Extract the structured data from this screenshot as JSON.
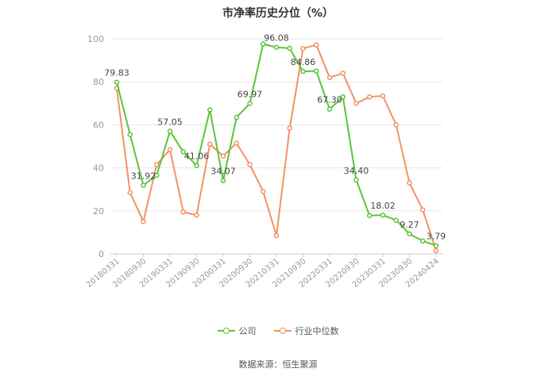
{
  "chart_data": {
    "type": "line",
    "title": "市净率历史分位（%）",
    "ylim": [
      0,
      100
    ],
    "yticks": [
      0,
      20,
      40,
      60,
      80,
      100
    ],
    "x": [
      "20180331",
      "20180630",
      "20180930",
      "20181231",
      "20190331",
      "20190630",
      "20190930",
      "20191231",
      "20200331",
      "20200630",
      "20200930",
      "20201231",
      "20210331",
      "20210630",
      "20210930",
      "20211231",
      "20220331",
      "20220630",
      "20220930",
      "20221231",
      "20230331",
      "20230630",
      "20230930",
      "20231231",
      "20240424"
    ],
    "xtick_labels": [
      "20180331",
      "20180930",
      "20190331",
      "20190930",
      "20200331",
      "20200930",
      "20210331",
      "20210930",
      "20220331",
      "20220930",
      "20230331",
      "20230930",
      "20240424"
    ],
    "series": [
      {
        "name": "公司",
        "color": "#5ac53a",
        "values": [
          79.83,
          55.5,
          31.92,
          36.5,
          57.05,
          47.5,
          41.06,
          67.0,
          34.07,
          63.5,
          69.97,
          97.6,
          96.08,
          95.6,
          84.86,
          85.0,
          67.3,
          73.0,
          34.4,
          17.8,
          18.02,
          15.6,
          9.27,
          6.0,
          3.79
        ]
      },
      {
        "name": "行业中位数",
        "color": "#f39164",
        "values": [
          77.0,
          28.5,
          15.0,
          41.5,
          48.5,
          19.5,
          18.0,
          51.0,
          45.5,
          51.5,
          41.5,
          29.0,
          8.5,
          58.5,
          95.5,
          97.2,
          82.0,
          84.0,
          70.0,
          73.0,
          73.5,
          60.0,
          33.0,
          20.5,
          1.5
        ]
      }
    ],
    "data_labels": [
      {
        "series": 0,
        "index": 0,
        "text": "79.83"
      },
      {
        "series": 0,
        "index": 2,
        "text": "31.92"
      },
      {
        "series": 0,
        "index": 4,
        "text": "57.05"
      },
      {
        "series": 0,
        "index": 6,
        "text": "41.06"
      },
      {
        "series": 0,
        "index": 8,
        "text": "34.07"
      },
      {
        "series": 0,
        "index": 10,
        "text": "69.97"
      },
      {
        "series": 0,
        "index": 12,
        "text": "96.08"
      },
      {
        "series": 0,
        "index": 14,
        "text": "84.86"
      },
      {
        "series": 0,
        "index": 16,
        "text": "67.30"
      },
      {
        "series": 0,
        "index": 18,
        "text": "34.40"
      },
      {
        "series": 0,
        "index": 20,
        "text": "18.02"
      },
      {
        "series": 0,
        "index": 22,
        "text": "9.27"
      },
      {
        "series": 0,
        "index": 24,
        "text": "3.79"
      }
    ],
    "grid": true,
    "legend_position": "bottom"
  },
  "legend": {
    "company_label": "公司",
    "industry_label": "行业中位数"
  },
  "source": "数据来源：恒生聚源"
}
